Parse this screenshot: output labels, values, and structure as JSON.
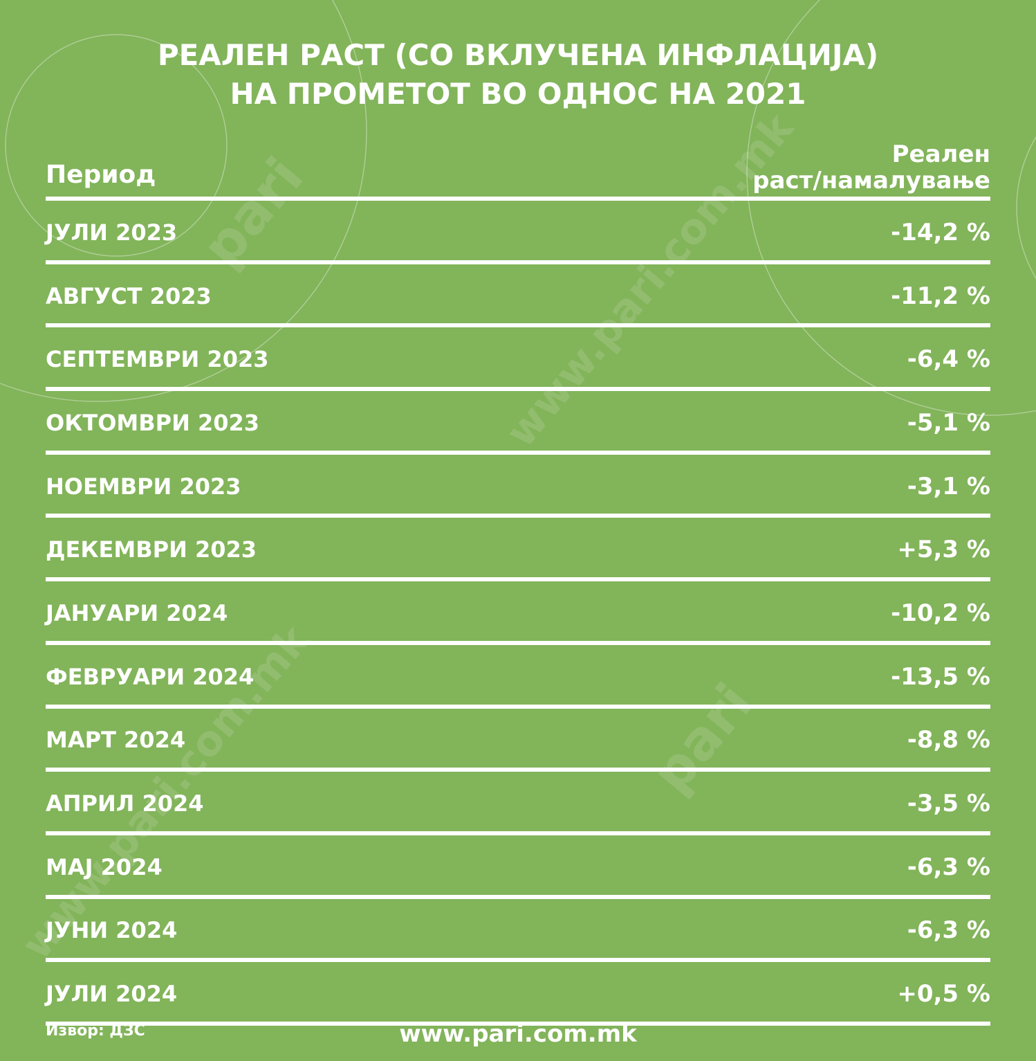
{
  "title_line1": "РЕАЛЕН РАСТ (СО ВКЛУЧЕНА ИНФЛАЦИЈА)",
  "title_line2": "НА ПРОМЕТОТ ВО ОДНОС НА 2021",
  "chart_data": {
    "type": "table",
    "title": "РЕАЛЕН РАСТ (СО ВКЛУЧЕНА ИНФЛАЦИЈА) НА ПРОМЕТОТ ВО ОДНОС НА 2021",
    "columns": [
      "Период",
      "Реален раст/намалување"
    ],
    "header_value_line1": "Реален",
    "header_value_line2": "раст/намалување",
    "rows": [
      {
        "period": "ЈУЛИ 2023",
        "value": -14.2,
        "label": "-14,2 %"
      },
      {
        "period": "АВГУСТ 2023",
        "value": -11.2,
        "label": "-11,2 %"
      },
      {
        "period": "СЕПТЕМВРИ 2023",
        "value": -6.4,
        "label": "-6,4 %"
      },
      {
        "period": "ОКТОМВРИ 2023",
        "value": -5.1,
        "label": "-5,1 %"
      },
      {
        "period": "НОЕМВРИ 2023",
        "value": -3.1,
        "label": "-3,1 %"
      },
      {
        "period": "ДЕКЕМВРИ 2023",
        "value": 5.3,
        "label": "+5,3 %"
      },
      {
        "period": "ЈАНУАРИ 2024",
        "value": -10.2,
        "label": "-10,2 %"
      },
      {
        "period": "ФЕВРУАРИ 2024",
        "value": -13.5,
        "label": "-13,5 %"
      },
      {
        "period": "МАРТ 2024",
        "value": -8.8,
        "label": "-8,8 %"
      },
      {
        "period": "АПРИЛ 2024",
        "value": -3.5,
        "label": "-3,5 %"
      },
      {
        "period": "МАЈ 2024",
        "value": -6.3,
        "label": "-6,3 %"
      },
      {
        "period": "ЈУНИ 2024",
        "value": -6.3,
        "label": "-6,3 %"
      },
      {
        "period": "ЈУЛИ 2024",
        "value": 0.5,
        "label": "+0,5 %"
      }
    ]
  },
  "source": "Извор: ДЗС",
  "website": "www.pari.com.mk",
  "watermark": "pari com.mk www.pari.com.mk",
  "colors": {
    "background": "#82b45a",
    "text": "#ffffff"
  }
}
